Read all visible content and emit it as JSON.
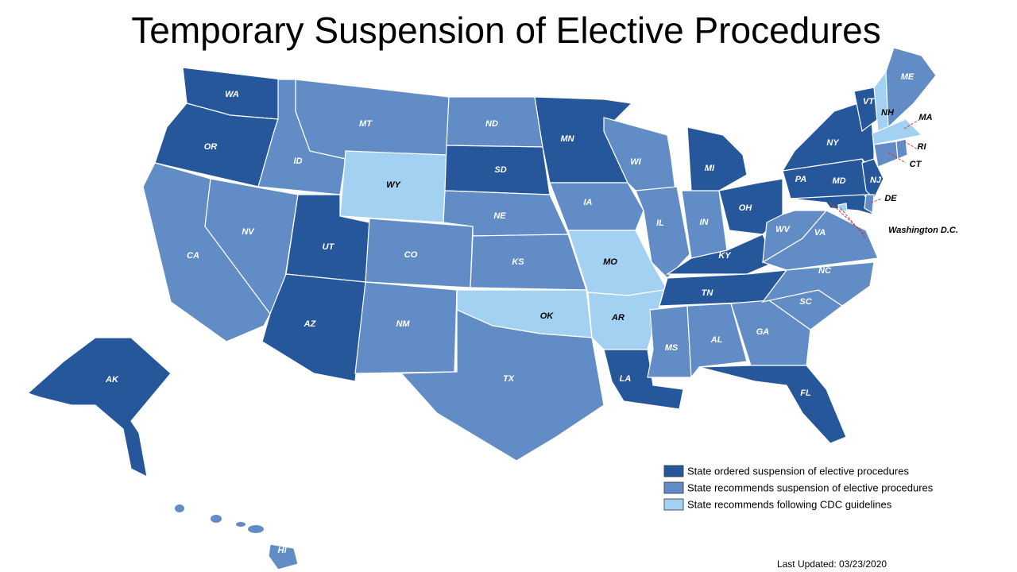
{
  "title": "Temporary Suspension of Elective Procedures",
  "legend": [
    {
      "label": "State ordered suspension of elective procedures",
      "color": "#25579a"
    },
    {
      "label": "State recommends suspension of elective procedures",
      "color": "#628cc6"
    },
    {
      "label": "State recommends following CDC guidelines",
      "color": "#a3d1f2"
    }
  ],
  "states": [
    {
      "label": "WA",
      "category": 0
    },
    {
      "label": "OR",
      "category": 0
    },
    {
      "label": "CA",
      "category": 1
    },
    {
      "label": "NV",
      "category": 1
    },
    {
      "label": "ID",
      "category": 1
    },
    {
      "label": "MT",
      "category": 1
    },
    {
      "label": "WY",
      "category": 2
    },
    {
      "label": "UT",
      "category": 0
    },
    {
      "label": "AZ",
      "category": 0
    },
    {
      "label": "CO",
      "category": 1
    },
    {
      "label": "NM",
      "category": 1
    },
    {
      "label": "ND",
      "category": 1
    },
    {
      "label": "SD",
      "category": 0
    },
    {
      "label": "NE",
      "category": 1
    },
    {
      "label": "KS",
      "category": 1
    },
    {
      "label": "OK",
      "category": 2
    },
    {
      "label": "TX",
      "category": 1
    },
    {
      "label": "MN",
      "category": 0
    },
    {
      "label": "IA",
      "category": 1
    },
    {
      "label": "MO",
      "category": 2
    },
    {
      "label": "AR",
      "category": 2
    },
    {
      "label": "LA",
      "category": 0
    },
    {
      "label": "WI",
      "category": 1
    },
    {
      "label": "IL",
      "category": 1
    },
    {
      "label": "IN",
      "category": 1
    },
    {
      "label": "MI",
      "category": 0
    },
    {
      "label": "OH",
      "category": 0
    },
    {
      "label": "KY",
      "category": 0
    },
    {
      "label": "TN",
      "category": 0
    },
    {
      "label": "MS",
      "category": 1
    },
    {
      "label": "AL",
      "category": 1
    },
    {
      "label": "GA",
      "category": 1
    },
    {
      "label": "FL",
      "category": 0
    },
    {
      "label": "SC",
      "category": 1
    },
    {
      "label": "NC",
      "category": 1
    },
    {
      "label": "VA",
      "category": 1
    },
    {
      "label": "WV",
      "category": 1
    },
    {
      "label": "PA",
      "category": 0
    },
    {
      "label": "NY",
      "category": 0
    },
    {
      "label": "VT",
      "category": 0
    },
    {
      "label": "NH",
      "category": 2
    },
    {
      "label": "ME",
      "category": 1
    },
    {
      "label": "MA",
      "category": 2
    },
    {
      "label": "CT",
      "category": 1
    },
    {
      "label": "RI",
      "category": 1
    },
    {
      "label": "NJ",
      "category": 0
    },
    {
      "label": "MD",
      "category": 0
    },
    {
      "label": "DE",
      "category": 1
    },
    {
      "label": "Washington D.C.",
      "category": 2
    },
    {
      "label": "AK",
      "category": 0
    },
    {
      "label": "HI",
      "category": 1
    }
  ],
  "last_updated": "Last Updated: 03/23/2020"
}
